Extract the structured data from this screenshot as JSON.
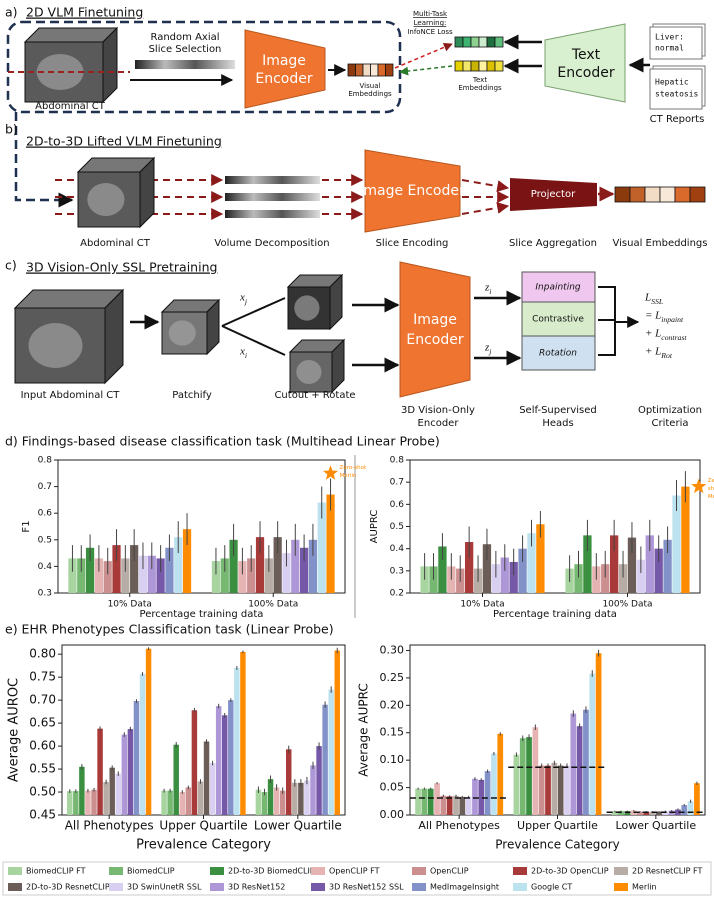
{
  "panels": {
    "a": {
      "label": "a)",
      "title": "2D VLM Finetuning",
      "slice_selection": [
        "Random Axial",
        "Slice Selection"
      ],
      "ct": "Abdominal CT",
      "encoder": [
        "Image",
        "Encoder"
      ],
      "visual": [
        "Visual",
        "Embeddings"
      ],
      "loss": [
        "Multi-Task",
        "Learning:",
        "InfoNCE Loss"
      ],
      "text_emb": [
        "Text",
        "Embeddings"
      ],
      "text_encoder": [
        "Text",
        "Encoder"
      ],
      "report1": [
        "Liver:",
        "normal"
      ],
      "report2": [
        "Hepatic",
        "steatosis"
      ],
      "reports": "CT Reports"
    },
    "b": {
      "label": "b)",
      "title": "2D-to-3D Lifted VLM Finetuning",
      "ct": "Abdominal CT",
      "decomp": "Volume Decomposition",
      "encoder": "Image Encoder",
      "slice_enc": "Slice Encoding",
      "projector": "Projector",
      "aggregation": "Slice Aggregation",
      "visual": "Visual Embeddings"
    },
    "c": {
      "label": "c)",
      "title": "3D Vision-Only SSL Pretraining",
      "ct": "Input Abdominal CT",
      "patchify": "Patchify",
      "cutout": "Cutout + Rotate",
      "xj": "x_j",
      "xi": "x_i",
      "encoder": [
        "Image",
        "Encoder"
      ],
      "encoder_caption": [
        "3D Vision-Only",
        "Encoder"
      ],
      "zi": "z_i",
      "zj": "z_j",
      "heads": [
        "Inpainting",
        "Contrastive",
        "Rotation"
      ],
      "heads_caption": [
        "Self-Supervised",
        "Heads"
      ],
      "loss": [
        "L_SSL",
        "= L_inpaint",
        "+ L_contrast",
        "+ L_Rot"
      ],
      "loss_caption": [
        "Optimization",
        "Criteria"
      ]
    },
    "d": {
      "title": "d) Findings-based disease classification task (Multihead Linear Probe)"
    },
    "e": {
      "title": "e) EHR Phenotypes Classification task (Linear Probe)"
    }
  },
  "chart_data": [
    {
      "type": "bar",
      "ylabel": "F1",
      "xlabel": "Percentage training data",
      "categories": [
        "10% Data",
        "100% Data"
      ],
      "ylim": [
        0.3,
        0.8
      ],
      "yticks": [
        0.3,
        0.4,
        0.5,
        0.6,
        0.7,
        0.8
      ],
      "annotation": {
        "lines": [
          "Zero-shot",
          "Merlin"
        ],
        "value": 0.75,
        "color": "#ff8c00"
      },
      "series": [
        {
          "color": "#a8d4a0",
          "values": [
            0.43,
            0.42
          ],
          "errors": [
            0.05,
            0.05
          ]
        },
        {
          "color": "#76b872",
          "values": [
            0.43,
            0.43
          ],
          "errors": [
            0.05,
            0.05
          ]
        },
        {
          "color": "#3b8f40",
          "values": [
            0.47,
            0.5
          ],
          "errors": [
            0.05,
            0.06
          ]
        },
        {
          "color": "#e6b3b3",
          "values": [
            0.43,
            0.42
          ],
          "errors": [
            0.05,
            0.05
          ]
        },
        {
          "color": "#cc8f8f",
          "values": [
            0.42,
            0.43
          ],
          "errors": [
            0.05,
            0.05
          ]
        },
        {
          "color": "#a83a3a",
          "values": [
            0.48,
            0.51
          ],
          "errors": [
            0.06,
            0.06
          ]
        },
        {
          "color": "#b8aca6",
          "values": [
            0.43,
            0.43
          ],
          "errors": [
            0.05,
            0.05
          ]
        },
        {
          "color": "#6b5e58",
          "values": [
            0.48,
            0.51
          ],
          "errors": [
            0.06,
            0.06
          ]
        },
        {
          "color": "#d9cff0",
          "values": [
            0.44,
            0.45
          ],
          "errors": [
            0.05,
            0.05
          ]
        },
        {
          "color": "#ad97d6",
          "values": [
            0.44,
            0.5
          ],
          "errors": [
            0.05,
            0.06
          ]
        },
        {
          "color": "#7658a8",
          "values": [
            0.43,
            0.47
          ],
          "errors": [
            0.05,
            0.05
          ]
        },
        {
          "color": "#8391c9",
          "values": [
            0.47,
            0.5
          ],
          "errors": [
            0.05,
            0.06
          ]
        },
        {
          "color": "#bde2ef",
          "values": [
            0.51,
            0.64
          ],
          "errors": [
            0.06,
            0.06
          ]
        },
        {
          "color": "#ff8c00",
          "values": [
            0.54,
            0.67
          ],
          "errors": [
            0.06,
            0.06
          ]
        }
      ]
    },
    {
      "type": "bar",
      "ylabel": "AUPRC",
      "xlabel": "Percentage training data",
      "categories": [
        "10% Data",
        "100% Data"
      ],
      "ylim": [
        0.2,
        0.8
      ],
      "yticks": [
        0.2,
        0.3,
        0.4,
        0.5,
        0.6,
        0.7,
        0.8
      ],
      "annotation": {
        "lines": [
          "Zero-",
          "shot",
          "Merlin"
        ],
        "value": 0.68,
        "color": "#ff8c00"
      },
      "series": [
        {
          "color": "#a8d4a0",
          "values": [
            0.32,
            0.31
          ],
          "errors": [
            0.06,
            0.06
          ]
        },
        {
          "color": "#76b872",
          "values": [
            0.32,
            0.33
          ],
          "errors": [
            0.06,
            0.06
          ]
        },
        {
          "color": "#3b8f40",
          "values": [
            0.41,
            0.46
          ],
          "errors": [
            0.06,
            0.07
          ]
        },
        {
          "color": "#e6b3b3",
          "values": [
            0.32,
            0.32
          ],
          "errors": [
            0.06,
            0.06
          ]
        },
        {
          "color": "#cc8f8f",
          "values": [
            0.31,
            0.33
          ],
          "errors": [
            0.06,
            0.06
          ]
        },
        {
          "color": "#a83a3a",
          "values": [
            0.43,
            0.46
          ],
          "errors": [
            0.07,
            0.07
          ]
        },
        {
          "color": "#b8aca6",
          "values": [
            0.31,
            0.33
          ],
          "errors": [
            0.06,
            0.06
          ]
        },
        {
          "color": "#6b5e58",
          "values": [
            0.42,
            0.45
          ],
          "errors": [
            0.07,
            0.07
          ]
        },
        {
          "color": "#d9cff0",
          "values": [
            0.33,
            0.35
          ],
          "errors": [
            0.06,
            0.06
          ]
        },
        {
          "color": "#ad97d6",
          "values": [
            0.36,
            0.46
          ],
          "errors": [
            0.06,
            0.07
          ]
        },
        {
          "color": "#7658a8",
          "values": [
            0.34,
            0.4
          ],
          "errors": [
            0.06,
            0.06
          ]
        },
        {
          "color": "#8391c9",
          "values": [
            0.4,
            0.44
          ],
          "errors": [
            0.06,
            0.06
          ]
        },
        {
          "color": "#bde2ef",
          "values": [
            0.47,
            0.64
          ],
          "errors": [
            0.06,
            0.07
          ]
        },
        {
          "color": "#ff8c00",
          "values": [
            0.51,
            0.68
          ],
          "errors": [
            0.06,
            0.07
          ]
        }
      ]
    },
    {
      "type": "bar",
      "ylabel": "Average AUROC",
      "xlabel": "Prevalence Category",
      "categories": [
        "All Phenotypes",
        "Upper Quartile",
        "Lower Quartile"
      ],
      "ylim": [
        0.45,
        0.82
      ],
      "yticks": [
        0.45,
        {
          "value": 0.5,
          "label": "0.50"
        },
        0.55,
        {
          "value": 0.6,
          "label": "0.60"
        },
        0.65,
        {
          "value": 0.7,
          "label": "0.70"
        },
        0.75,
        {
          "value": 0.8,
          "label": "0.80"
        }
      ],
      "series": [
        {
          "name": "BiomedCLIP FT",
          "color": "#a8d4a0",
          "values": [
            0.502,
            0.503,
            0.505
          ],
          "errors": [
            0.004,
            0.004,
            0.007
          ]
        },
        {
          "name": "BiomedCLIP",
          "color": "#76b872",
          "values": [
            0.502,
            0.503,
            0.5
          ],
          "errors": [
            0.004,
            0.004,
            0.007
          ]
        },
        {
          "name": "2D-to-3D BiomedCLIP",
          "color": "#3b8f40",
          "values": [
            0.555,
            0.603,
            0.528
          ],
          "errors": [
            0.006,
            0.006,
            0.008
          ]
        },
        {
          "name": "OpenCLIP FT",
          "color": "#e6b3b3",
          "values": [
            0.503,
            0.5,
            0.51
          ],
          "errors": [
            0.004,
            0.004,
            0.007
          ]
        },
        {
          "name": "OpenCLIP",
          "color": "#cc8f8f",
          "values": [
            0.505,
            0.51,
            0.503
          ],
          "errors": [
            0.004,
            0.004,
            0.007
          ]
        },
        {
          "name": "2D-to-3D OpenCLIP",
          "color": "#a83a3a",
          "values": [
            0.638,
            0.678,
            0.593
          ],
          "errors": [
            0.005,
            0.005,
            0.008
          ]
        },
        {
          "name": "2D ResnetCLIP FT",
          "color": "#b8aca6",
          "values": [
            0.522,
            0.523,
            0.52
          ],
          "errors": [
            0.005,
            0.005,
            0.008
          ]
        },
        {
          "name": "2D-to-3D ResnetCLIP",
          "color": "#6b5e58",
          "values": [
            0.553,
            0.61,
            0.52
          ],
          "errors": [
            0.005,
            0.005,
            0.008
          ]
        },
        {
          "name": "3D SwinUnetR SSL",
          "color": "#d9cff0",
          "values": [
            0.54,
            0.563,
            0.525
          ],
          "errors": [
            0.005,
            0.005,
            0.008
          ]
        },
        {
          "name": "3D ResNet152",
          "color": "#ad97d6",
          "values": [
            0.625,
            0.687,
            0.558
          ],
          "errors": [
            0.005,
            0.005,
            0.008
          ]
        },
        {
          "name": "3D ResNet152 SSL",
          "color": "#7658a8",
          "values": [
            0.637,
            0.667,
            0.6
          ],
          "errors": [
            0.005,
            0.005,
            0.008
          ]
        },
        {
          "name": "MedImageInsight",
          "color": "#8391c9",
          "values": [
            0.698,
            0.7,
            0.69
          ],
          "errors": [
            0.004,
            0.004,
            0.007
          ]
        },
        {
          "name": "Google CT",
          "color": "#bde2ef",
          "values": [
            0.757,
            0.77,
            0.723
          ],
          "errors": [
            0.004,
            0.004,
            0.007
          ]
        },
        {
          "name": "Merlin",
          "color": "#ff8c00",
          "values": [
            0.812,
            0.805,
            0.808
          ],
          "errors": [
            0.003,
            0.003,
            0.006
          ]
        }
      ]
    },
    {
      "type": "bar",
      "ylabel": "Average AUPRC",
      "xlabel": "Prevalence Category",
      "categories": [
        "All Phenotypes",
        "Upper Quartile",
        "Lower Quartile"
      ],
      "ylim": [
        0,
        0.31
      ],
      "yticks": [
        {
          "value": 0,
          "label": "0.00"
        },
        0.05,
        {
          "value": 0.1,
          "label": "0.10"
        },
        0.15,
        {
          "value": 0.2,
          "label": "0.20"
        },
        0.25,
        {
          "value": 0.3,
          "label": "0.30"
        }
      ],
      "baselines": [
        0.031,
        0.087,
        0.005
      ],
      "series": [
        {
          "color": "#a8d4a0",
          "values": [
            0.048,
            0.11,
            0.007
          ],
          "errors": [
            0.002,
            0.004,
            0.001
          ]
        },
        {
          "color": "#76b872",
          "values": [
            0.048,
            0.14,
            0.007
          ],
          "errors": [
            0.002,
            0.005,
            0.001
          ]
        },
        {
          "color": "#3b8f40",
          "values": [
            0.048,
            0.142,
            0.007
          ],
          "errors": [
            0.002,
            0.005,
            0.001
          ]
        },
        {
          "color": "#e6b3b3",
          "values": [
            0.058,
            0.16,
            0.008
          ],
          "errors": [
            0.002,
            0.005,
            0.001
          ]
        },
        {
          "color": "#cc8f8f",
          "values": [
            0.035,
            0.09,
            0.006
          ],
          "errors": [
            0.002,
            0.004,
            0.001
          ]
        },
        {
          "color": "#a83a3a",
          "values": [
            0.034,
            0.09,
            0.006
          ],
          "errors": [
            0.002,
            0.004,
            0.001
          ]
        },
        {
          "color": "#b8aca6",
          "values": [
            0.035,
            0.095,
            0.006
          ],
          "errors": [
            0.002,
            0.004,
            0.001
          ]
        },
        {
          "color": "#6b5e58",
          "values": [
            0.033,
            0.09,
            0.006
          ],
          "errors": [
            0.002,
            0.004,
            0.001
          ]
        },
        {
          "color": "#d9cff0",
          "values": [
            0.033,
            0.09,
            0.007
          ],
          "errors": [
            0.002,
            0.004,
            0.001
          ]
        },
        {
          "color": "#ad97d6",
          "values": [
            0.066,
            0.185,
            0.008
          ],
          "errors": [
            0.003,
            0.006,
            0.001
          ]
        },
        {
          "color": "#7658a8",
          "values": [
            0.064,
            0.162,
            0.01
          ],
          "errors": [
            0.003,
            0.005,
            0.002
          ]
        },
        {
          "color": "#8391c9",
          "values": [
            0.08,
            0.192,
            0.018
          ],
          "errors": [
            0.003,
            0.006,
            0.002
          ]
        },
        {
          "color": "#bde2ef",
          "values": [
            0.112,
            0.258,
            0.025
          ],
          "errors": [
            0.003,
            0.006,
            0.003
          ]
        },
        {
          "color": "#ff8c00",
          "values": [
            0.148,
            0.295,
            0.058
          ],
          "errors": [
            0.003,
            0.006,
            0.003
          ]
        }
      ]
    }
  ]
}
